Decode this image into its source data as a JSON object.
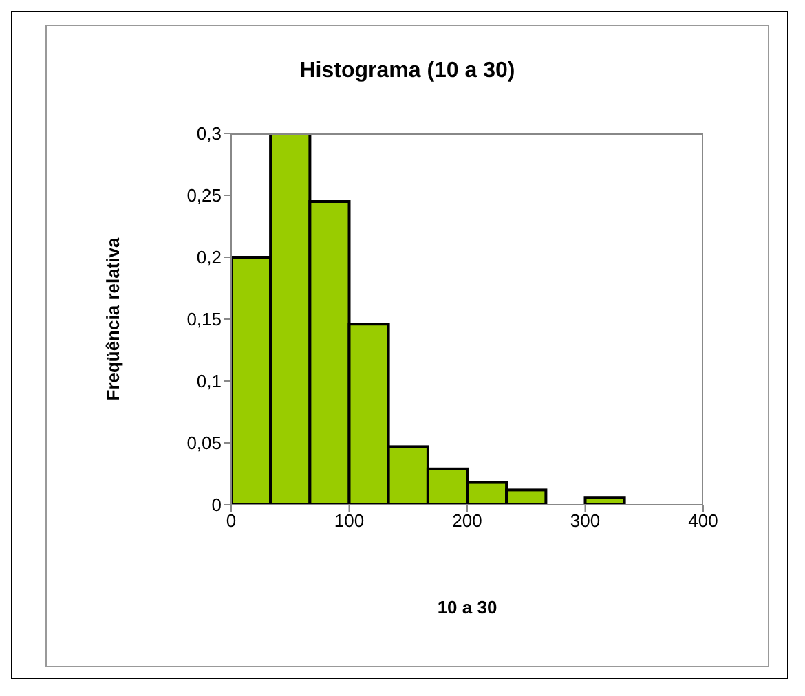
{
  "chart_data": {
    "type": "histogram",
    "title": "Histograma (10 a 30)",
    "xlabel": "10 a 30",
    "ylabel": "Freqüência relativa",
    "bins": [
      0,
      33.3,
      66.7,
      100,
      133.3,
      166.7,
      200,
      233.3,
      266.7,
      300,
      333.3
    ],
    "values": [
      0.2,
      0.3,
      0.245,
      0.146,
      0.047,
      0.029,
      0.018,
      0.012,
      0,
      0.006
    ],
    "color": "#99cc00",
    "xlim": [
      0,
      400
    ],
    "xticks": [
      0,
      100,
      200,
      300,
      400
    ],
    "ylim": [
      0,
      0.3
    ],
    "yticks": [
      0,
      {
        "value": 0.05,
        "label": "0,05"
      },
      {
        "value": 0.1,
        "label": "0,1"
      },
      {
        "value": 0.15,
        "label": "0,15"
      },
      {
        "value": 0.2,
        "label": "0,2"
      },
      {
        "value": 0.25,
        "label": "0,25"
      },
      {
        "value": 0.3,
        "label": "0,3"
      }
    ],
    "grid": false
  }
}
